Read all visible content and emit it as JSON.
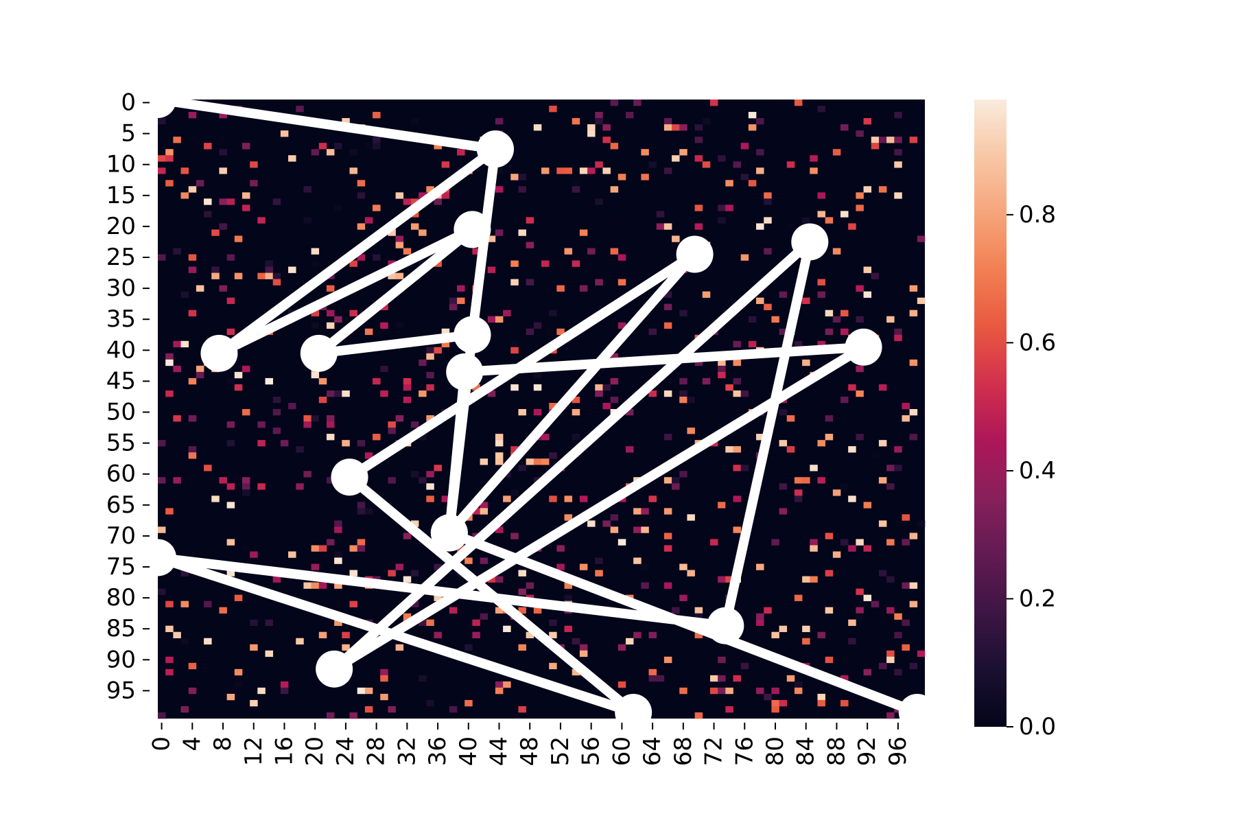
{
  "chart_data": {
    "type": "heatmap",
    "title": "",
    "xlabel": "",
    "ylabel": "",
    "n_rows": 100,
    "n_cols": 100,
    "background_value": 0.0,
    "density": 0.08,
    "x_ticks": [
      0,
      4,
      8,
      12,
      16,
      20,
      24,
      28,
      32,
      36,
      40,
      44,
      48,
      52,
      56,
      60,
      64,
      68,
      72,
      76,
      80,
      84,
      88,
      92,
      96
    ],
    "y_ticks": [
      0,
      5,
      10,
      15,
      20,
      25,
      30,
      35,
      40,
      45,
      50,
      55,
      60,
      65,
      70,
      75,
      80,
      85,
      90,
      95
    ],
    "colorbar": {
      "min": 0.0,
      "max": 0.98,
      "ticks": [
        0.0,
        0.2,
        0.4,
        0.6,
        0.8
      ],
      "tick_labels": [
        "0.0",
        "0.2",
        "0.4",
        "0.6",
        "0.8"
      ],
      "colormap": "rocket",
      "stops": [
        "#03051a",
        "#1a1031",
        "#3d1543",
        "#611a52",
        "#87205b",
        "#ad1759",
        "#d12f4d",
        "#e85840",
        "#f27f52",
        "#f6a47a",
        "#f8c7a5",
        "#faebdd"
      ]
    },
    "path": {
      "color": "#ffffff",
      "marker": "circle",
      "points": [
        {
          "x": 0,
          "y": 0
        },
        {
          "x": 44,
          "y": 8
        },
        {
          "x": 41,
          "y": 38
        },
        {
          "x": 21,
          "y": 41
        },
        {
          "x": 41,
          "y": 21
        },
        {
          "x": 8,
          "y": 41
        },
        {
          "x": 44,
          "y": 8
        },
        {
          "x": 41,
          "y": 38
        },
        {
          "x": 38,
          "y": 70
        },
        {
          "x": 70,
          "y": 25
        },
        {
          "x": 25,
          "y": 61
        },
        {
          "x": 62,
          "y": 99
        },
        {
          "x": 0,
          "y": 74
        },
        {
          "x": 74,
          "y": 85
        },
        {
          "x": 85,
          "y": 23
        },
        {
          "x": 23,
          "y": 92
        },
        {
          "x": 92,
          "y": 40
        },
        {
          "x": 40,
          "y": 44
        },
        {
          "x": 38,
          "y": 70
        },
        {
          "x": 99,
          "y": 99
        }
      ]
    }
  }
}
